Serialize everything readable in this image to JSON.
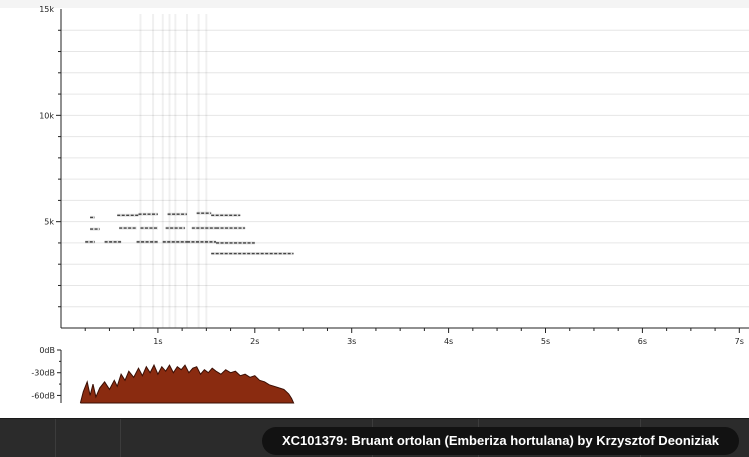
{
  "recording": {
    "caption": "XC101379: Bruant ortolan (Emberiza hortulana) by Krzysztof Deoniziak"
  },
  "colors": {
    "waveform_fill": "#8a2b10",
    "waveform_stroke": "#3a0f05",
    "grid": "#e6e6e6",
    "axis": "#222222",
    "bar_background": "#2b2b2b",
    "caption_background": "#121212"
  },
  "chart_data": [
    {
      "type": "heatmap",
      "title": "",
      "xlabel": "",
      "ylabel": "",
      "x_ticks": [
        "1s",
        "2s",
        "3s",
        "4s",
        "5s",
        "6s",
        "7s"
      ],
      "x_tick_values": [
        1,
        2,
        3,
        4,
        5,
        6,
        7
      ],
      "y_ticks": [
        "5k",
        "10k",
        "15k"
      ],
      "y_tick_values": [
        5000,
        10000,
        15000
      ],
      "xlim": [
        0,
        7.1
      ],
      "ylim": [
        0,
        15000
      ],
      "grid": true,
      "note_segments": [
        {
          "t0": 0.25,
          "t1": 0.35,
          "f": 4050
        },
        {
          "t0": 0.3,
          "t1": 0.4,
          "f": 4650
        },
        {
          "t0": 0.3,
          "t1": 0.35,
          "f": 5200
        },
        {
          "t0": 0.45,
          "t1": 0.62,
          "f": 4050
        },
        {
          "t0": 0.6,
          "t1": 0.78,
          "f": 4700
        },
        {
          "t0": 0.58,
          "t1": 0.8,
          "f": 5300
        },
        {
          "t0": 0.78,
          "t1": 1.0,
          "f": 4050
        },
        {
          "t0": 0.82,
          "t1": 1.0,
          "f": 4700
        },
        {
          "t0": 0.8,
          "t1": 1.0,
          "f": 5350
        },
        {
          "t0": 1.05,
          "t1": 1.3,
          "f": 4050
        },
        {
          "t0": 1.08,
          "t1": 1.28,
          "f": 4700
        },
        {
          "t0": 1.1,
          "t1": 1.3,
          "f": 5350
        },
        {
          "t0": 1.3,
          "t1": 1.6,
          "f": 4050
        },
        {
          "t0": 1.35,
          "t1": 1.6,
          "f": 4700
        },
        {
          "t0": 1.4,
          "t1": 1.55,
          "f": 5400
        },
        {
          "t0": 1.6,
          "t1": 2.0,
          "f": 4000
        },
        {
          "t0": 1.6,
          "t1": 1.9,
          "f": 4700
        },
        {
          "t0": 1.55,
          "t1": 1.85,
          "f": 5300
        },
        {
          "t0": 1.55,
          "t1": 2.4,
          "f": 3500
        }
      ],
      "vertical_streaks": [
        0.82,
        0.95,
        1.05,
        1.12,
        1.18,
        1.3,
        1.42,
        1.5
      ]
    },
    {
      "type": "area",
      "title": "",
      "xlabel": "",
      "ylabel": "",
      "y_ticks": [
        "0dB",
        "-30dB",
        "-60dB"
      ],
      "y_tick_values": [
        0,
        -30,
        -60
      ],
      "ylim": [
        -70,
        0
      ],
      "x": [
        0.2,
        0.23,
        0.27,
        0.3,
        0.33,
        0.36,
        0.4,
        0.45,
        0.5,
        0.55,
        0.58,
        0.62,
        0.66,
        0.7,
        0.75,
        0.8,
        0.84,
        0.88,
        0.92,
        0.96,
        1.0,
        1.04,
        1.08,
        1.12,
        1.16,
        1.2,
        1.24,
        1.28,
        1.32,
        1.36,
        1.4,
        1.44,
        1.48,
        1.52,
        1.56,
        1.6,
        1.65,
        1.7,
        1.75,
        1.8,
        1.85,
        1.9,
        1.95,
        2.0,
        2.05,
        2.1,
        2.15,
        2.2,
        2.25,
        2.3,
        2.35,
        2.38,
        2.4
      ],
      "values": [
        -70,
        -55,
        -42,
        -60,
        -45,
        -62,
        -50,
        -42,
        -52,
        -40,
        -48,
        -32,
        -40,
        -28,
        -36,
        -24,
        -34,
        -22,
        -30,
        -20,
        -32,
        -22,
        -28,
        -20,
        -30,
        -22,
        -26,
        -20,
        -30,
        -24,
        -22,
        -32,
        -26,
        -30,
        -24,
        -28,
        -32,
        -26,
        -30,
        -28,
        -34,
        -32,
        -36,
        -34,
        -40,
        -42,
        -46,
        -48,
        -50,
        -52,
        -58,
        -64,
        -70
      ]
    }
  ]
}
